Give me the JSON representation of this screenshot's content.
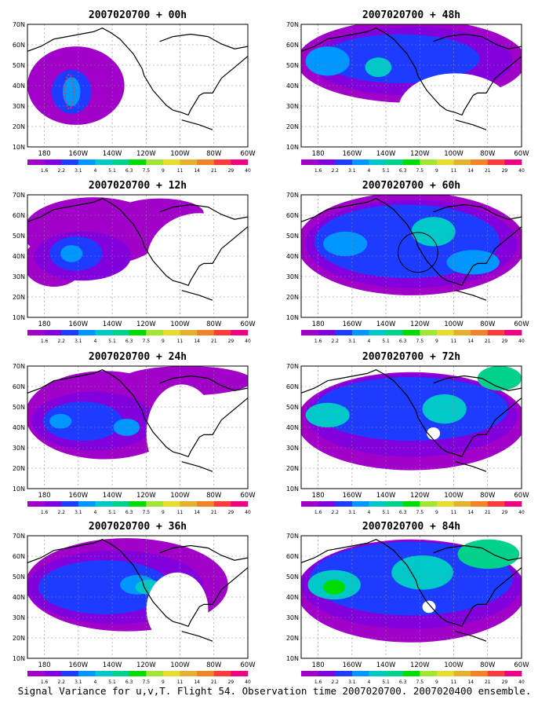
{
  "figure": {
    "footer": "Signal Variance for u,v,T. Flight 54. Observation time 2007020700. 2007020400 ensemble."
  },
  "axes": {
    "lat_ticks": [
      "10N",
      "20N",
      "30N",
      "40N",
      "50N",
      "60N",
      "70N"
    ],
    "lon_ticks": [
      "180",
      "160W",
      "140W",
      "120W",
      "100W",
      "80W",
      "60W"
    ]
  },
  "colorbar": {
    "labels": [
      "1.6",
      "2.2",
      "3.1",
      "4",
      "5.1",
      "6.3",
      "7.5",
      "9",
      "11",
      "14",
      "21",
      "29",
      "40"
    ],
    "colors": [
      "#a000c8",
      "#8200dc",
      "#1e3cff",
      "#0096ff",
      "#00c8c8",
      "#00d28c",
      "#00dc00",
      "#a0e632",
      "#e6dc32",
      "#e6af2d",
      "#f08228",
      "#fa3c3c",
      "#f00082"
    ]
  },
  "chart_data": {
    "type": "heatmap",
    "panels": [
      {
        "title": "2007020700 + 00h"
      },
      {
        "title": "2007020700 + 12h"
      },
      {
        "title": "2007020700 + 24h"
      },
      {
        "title": "2007020700 + 36h"
      },
      {
        "title": "2007020700 + 48h"
      },
      {
        "title": "2007020700 + 60h"
      },
      {
        "title": "2007020700 + 72h"
      },
      {
        "title": "2007020700 + 84h"
      }
    ],
    "lat_range": [
      10,
      70
    ],
    "lon_range": [
      -190,
      -60
    ],
    "colorbar_thresholds": [
      1.6,
      2.2,
      3.1,
      4,
      5.1,
      6.3,
      7.5,
      9,
      11,
      14,
      21,
      29,
      40
    ]
  }
}
